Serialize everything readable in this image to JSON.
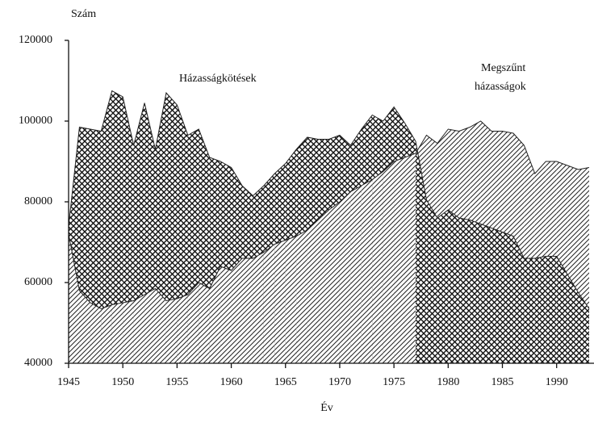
{
  "chart_data": {
    "type": "area",
    "y_label": "Szám",
    "x_label": "Év",
    "annotations": [
      "Házasságkötések",
      "Megszűnt",
      "házasságok"
    ],
    "x": [
      1945,
      1946,
      1947,
      1948,
      1949,
      1950,
      1951,
      1952,
      1953,
      1954,
      1955,
      1956,
      1957,
      1958,
      1959,
      1960,
      1961,
      1962,
      1963,
      1964,
      1965,
      1966,
      1967,
      1968,
      1969,
      1970,
      1971,
      1972,
      1973,
      1974,
      1975,
      1976,
      1977,
      1978,
      1979,
      1980,
      1981,
      1982,
      1983,
      1984,
      1985,
      1986,
      1987,
      1988,
      1989,
      1990,
      1991,
      1992,
      1993
    ],
    "series": [
      {
        "pattern": "crosshatch",
        "color": "#222222",
        "values": [
          74000,
          98500,
          98000,
          97500,
          107500,
          106000,
          94000,
          104500,
          93000,
          107000,
          104000,
          96500,
          98000,
          91000,
          90000,
          88500,
          84000,
          81500,
          84000,
          87000,
          89500,
          93000,
          96000,
          95500,
          95500,
          96500,
          94000,
          98000,
          101500,
          100000,
          103500,
          99500,
          95000,
          80500,
          76000,
          78000,
          76000,
          75500,
          74500,
          73500,
          72500,
          71500,
          66000,
          66000,
          66500,
          66500,
          62000,
          57500,
          53500
        ]
      },
      {
        "pattern": "diagonal",
        "color": "#222222",
        "values": [
          72000,
          58000,
          55000,
          53500,
          54500,
          55000,
          55500,
          57000,
          58500,
          55500,
          56000,
          57000,
          60000,
          58500,
          64000,
          63000,
          66000,
          66000,
          67500,
          69500,
          70500,
          71500,
          73000,
          75500,
          78000,
          80000,
          82500,
          84000,
          85500,
          87500,
          90000,
          91000,
          92000,
          96500,
          94500,
          98000,
          97500,
          98500,
          100000,
          97500,
          97500,
          97000,
          94000,
          87000,
          90000,
          90000,
          89000,
          88000,
          88500
        ]
      }
    ],
    "xlim": [
      1945,
      1993
    ],
    "xticks": [
      1945,
      1950,
      1955,
      1960,
      1965,
      1970,
      1975,
      1980,
      1985,
      1990
    ],
    "ylim": [
      40000,
      120000
    ],
    "yticks": [
      40000,
      60000,
      80000,
      100000,
      120000
    ]
  }
}
